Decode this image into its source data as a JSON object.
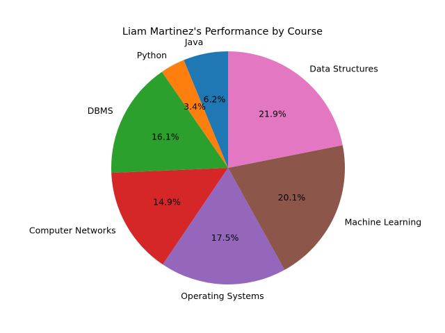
{
  "chart_data": {
    "type": "pie",
    "title": "Liam Martinez's Performance by Course",
    "start_angle_deg": 90,
    "direction": "counterclockwise",
    "slices": [
      {
        "label": "Java",
        "percent": 6.2,
        "color": "#1f77b4"
      },
      {
        "label": "Python",
        "percent": 3.4,
        "color": "#ff7f0e"
      },
      {
        "label": "DBMS",
        "percent": 16.1,
        "color": "#2ca02c"
      },
      {
        "label": "Computer Networks",
        "percent": 14.9,
        "color": "#d62728"
      },
      {
        "label": "Operating Systems",
        "percent": 17.5,
        "color": "#9467bd"
      },
      {
        "label": "Machine Learning",
        "percent": 20.1,
        "color": "#8c564b"
      },
      {
        "label": "Data Structures",
        "percent": 21.9,
        "color": "#e377c2"
      }
    ]
  }
}
